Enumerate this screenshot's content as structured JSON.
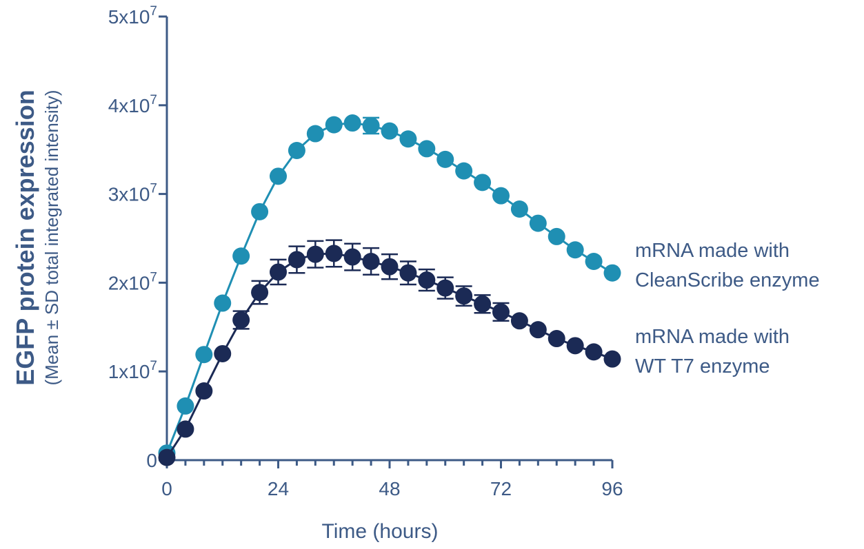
{
  "chart_data": {
    "type": "line",
    "ylabel": "EGFP protein expression",
    "ylabel_sub": "(Mean ± SD total integrated intensity)",
    "xlabel": "Time (hours)",
    "xlim": [
      0,
      96
    ],
    "ylim": [
      0,
      50000000
    ],
    "x_ticks": [
      0,
      24,
      48,
      72,
      96
    ],
    "x_tick_labels": [
      "0",
      "24",
      "48",
      "72",
      "96"
    ],
    "y_ticks": [
      0,
      10000000,
      20000000,
      30000000,
      40000000,
      50000000
    ],
    "y_tick_labels": [
      {
        "mantissa": "0",
        "exp": ""
      },
      {
        "mantissa": "1x10",
        "exp": "7"
      },
      {
        "mantissa": "2x10",
        "exp": "7"
      },
      {
        "mantissa": "3x10",
        "exp": "7"
      },
      {
        "mantissa": "4x10",
        "exp": "7"
      },
      {
        "mantissa": "5x10",
        "exp": "7"
      }
    ],
    "grid": false,
    "legend_placement": "right",
    "x": [
      0,
      4,
      8,
      12,
      16,
      20,
      24,
      28,
      32,
      36,
      40,
      44,
      48,
      52,
      56,
      60,
      64,
      68,
      72,
      76,
      80,
      84,
      88,
      92,
      96
    ],
    "series": [
      {
        "name": "mRNA made with CleanScribe enzyme",
        "label_lines": [
          "mRNA made with",
          "CleanScribe enzyme"
        ],
        "color": "#1f8fb3",
        "values": [
          800000,
          6100000,
          11900000,
          17700000,
          23000000,
          28000000,
          32000000,
          34900000,
          36800000,
          37800000,
          38000000,
          37700000,
          37100000,
          36200000,
          35100000,
          33900000,
          32600000,
          31300000,
          29800000,
          28300000,
          26700000,
          25200000,
          23700000,
          22400000,
          21100000
        ],
        "sd": [
          0,
          0,
          0,
          0,
          0,
          0,
          0,
          0,
          0,
          0,
          0,
          900000,
          0,
          0,
          0,
          0,
          0,
          0,
          0,
          0,
          0,
          0,
          0,
          0,
          0
        ]
      },
      {
        "name": "mRNA made with WT T7 enzyme",
        "label_lines": [
          "mRNA made with",
          "WT T7 enzyme"
        ],
        "color": "#1b2a55",
        "values": [
          300000,
          3500000,
          7800000,
          12000000,
          15800000,
          18900000,
          21200000,
          22600000,
          23200000,
          23300000,
          22900000,
          22400000,
          21800000,
          21100000,
          20300000,
          19400000,
          18500000,
          17600000,
          16700000,
          15700000,
          14700000,
          13700000,
          12900000,
          12200000,
          11400000
        ],
        "sd": [
          0,
          0,
          0,
          0,
          1000000,
          1300000,
          1400000,
          1500000,
          1500000,
          1500000,
          1500000,
          1500000,
          1400000,
          1300000,
          1200000,
          1200000,
          1100000,
          1000000,
          1000000,
          0,
          0,
          0,
          0,
          0,
          0
        ]
      }
    ]
  }
}
